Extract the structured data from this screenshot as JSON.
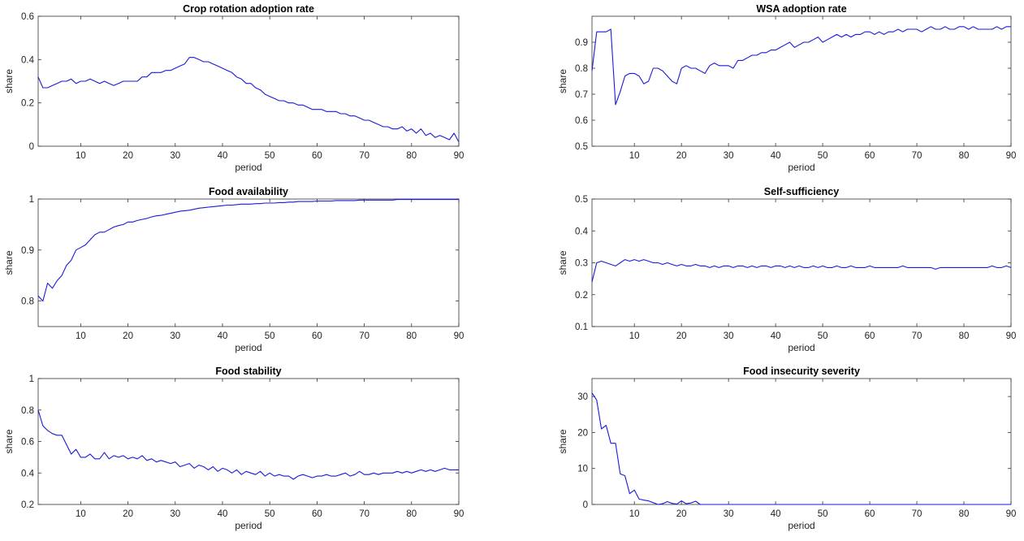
{
  "series_color": "#1a1adb",
  "chart_data": [
    {
      "type": "line",
      "title": "Crop rotation adoption rate",
      "xlabel": "period",
      "ylabel": "share",
      "xlim": [
        1,
        90
      ],
      "ylim": [
        0,
        0.6
      ],
      "xticks": [
        10,
        20,
        30,
        40,
        50,
        60,
        70,
        80,
        90
      ],
      "yticks": [
        0,
        0.2,
        0.4,
        0.6
      ],
      "ytick_labels": [
        "0",
        "0.2",
        "0.4",
        "0.6"
      ],
      "grid": false,
      "x": [
        1,
        2,
        3,
        4,
        5,
        6,
        7,
        8,
        9,
        10,
        11,
        12,
        13,
        14,
        15,
        16,
        17,
        18,
        19,
        20,
        21,
        22,
        23,
        24,
        25,
        26,
        27,
        28,
        29,
        30,
        31,
        32,
        33,
        34,
        35,
        36,
        37,
        38,
        39,
        40,
        41,
        42,
        43,
        44,
        45,
        46,
        47,
        48,
        49,
        50,
        51,
        52,
        53,
        54,
        55,
        56,
        57,
        58,
        59,
        60,
        61,
        62,
        63,
        64,
        65,
        66,
        67,
        68,
        69,
        70,
        71,
        72,
        73,
        74,
        75,
        76,
        77,
        78,
        79,
        80,
        81,
        82,
        83,
        84,
        85,
        86,
        87,
        88,
        89,
        90
      ],
      "y": [
        0.32,
        0.27,
        0.27,
        0.28,
        0.29,
        0.3,
        0.3,
        0.31,
        0.29,
        0.3,
        0.3,
        0.31,
        0.3,
        0.29,
        0.3,
        0.29,
        0.28,
        0.29,
        0.3,
        0.3,
        0.3,
        0.3,
        0.32,
        0.32,
        0.34,
        0.34,
        0.34,
        0.35,
        0.35,
        0.36,
        0.37,
        0.38,
        0.41,
        0.41,
        0.4,
        0.39,
        0.39,
        0.38,
        0.37,
        0.36,
        0.35,
        0.34,
        0.32,
        0.31,
        0.29,
        0.29,
        0.27,
        0.26,
        0.24,
        0.23,
        0.22,
        0.21,
        0.21,
        0.2,
        0.2,
        0.19,
        0.19,
        0.18,
        0.17,
        0.17,
        0.17,
        0.16,
        0.16,
        0.16,
        0.15,
        0.15,
        0.14,
        0.14,
        0.13,
        0.12,
        0.12,
        0.11,
        0.1,
        0.09,
        0.09,
        0.08,
        0.08,
        0.09,
        0.07,
        0.08,
        0.06,
        0.08,
        0.05,
        0.06,
        0.04,
        0.05,
        0.04,
        0.03,
        0.06,
        0.02
      ]
    },
    {
      "type": "line",
      "title": "WSA adoption rate",
      "xlabel": "period",
      "ylabel": "share",
      "xlim": [
        1,
        90
      ],
      "ylim": [
        0.5,
        1.0
      ],
      "xticks": [
        10,
        20,
        30,
        40,
        50,
        60,
        70,
        80,
        90
      ],
      "yticks": [
        0.5,
        0.6,
        0.7,
        0.8,
        0.9
      ],
      "ytick_labels": [
        "0.5",
        "0.6",
        "0.7",
        "0.8",
        "0.9"
      ],
      "grid": false,
      "x": [
        1,
        2,
        3,
        4,
        5,
        6,
        7,
        8,
        9,
        10,
        11,
        12,
        13,
        14,
        15,
        16,
        17,
        18,
        19,
        20,
        21,
        22,
        23,
        24,
        25,
        26,
        27,
        28,
        29,
        30,
        31,
        32,
        33,
        34,
        35,
        36,
        37,
        38,
        39,
        40,
        41,
        42,
        43,
        44,
        45,
        46,
        47,
        48,
        49,
        50,
        51,
        52,
        53,
        54,
        55,
        56,
        57,
        58,
        59,
        60,
        61,
        62,
        63,
        64,
        65,
        66,
        67,
        68,
        69,
        70,
        71,
        72,
        73,
        74,
        75,
        76,
        77,
        78,
        79,
        80,
        81,
        82,
        83,
        84,
        85,
        86,
        87,
        88,
        89,
        90
      ],
      "y": [
        0.79,
        0.94,
        0.94,
        0.94,
        0.95,
        0.66,
        0.71,
        0.77,
        0.78,
        0.78,
        0.77,
        0.74,
        0.75,
        0.8,
        0.8,
        0.79,
        0.77,
        0.75,
        0.74,
        0.8,
        0.81,
        0.8,
        0.8,
        0.79,
        0.78,
        0.81,
        0.82,
        0.81,
        0.81,
        0.81,
        0.8,
        0.83,
        0.83,
        0.84,
        0.85,
        0.85,
        0.86,
        0.86,
        0.87,
        0.87,
        0.88,
        0.89,
        0.9,
        0.88,
        0.89,
        0.9,
        0.9,
        0.91,
        0.92,
        0.9,
        0.91,
        0.92,
        0.93,
        0.92,
        0.93,
        0.92,
        0.93,
        0.93,
        0.94,
        0.94,
        0.93,
        0.94,
        0.93,
        0.94,
        0.94,
        0.95,
        0.94,
        0.95,
        0.95,
        0.95,
        0.94,
        0.95,
        0.96,
        0.95,
        0.95,
        0.96,
        0.95,
        0.95,
        0.96,
        0.96,
        0.95,
        0.96,
        0.95,
        0.95,
        0.95,
        0.95,
        0.96,
        0.95,
        0.96,
        0.96
      ]
    },
    {
      "type": "line",
      "title": "Food availability",
      "xlabel": "period",
      "ylabel": "share",
      "xlim": [
        1,
        90
      ],
      "ylim": [
        0.75,
        1.0
      ],
      "xticks": [
        10,
        20,
        30,
        40,
        50,
        60,
        70,
        80,
        90
      ],
      "yticks": [
        0.8,
        0.9,
        1.0
      ],
      "ytick_labels": [
        "0.8",
        "0.9",
        "1"
      ],
      "grid": false,
      "x": [
        1,
        2,
        3,
        4,
        5,
        6,
        7,
        8,
        9,
        10,
        11,
        12,
        13,
        14,
        15,
        16,
        17,
        18,
        19,
        20,
        21,
        22,
        23,
        24,
        25,
        26,
        27,
        28,
        29,
        30,
        31,
        32,
        33,
        34,
        35,
        36,
        37,
        38,
        39,
        40,
        41,
        42,
        43,
        44,
        45,
        46,
        47,
        48,
        49,
        50,
        51,
        52,
        53,
        54,
        55,
        56,
        57,
        58,
        59,
        60,
        61,
        62,
        63,
        64,
        65,
        66,
        67,
        68,
        69,
        70,
        71,
        72,
        73,
        74,
        75,
        76,
        77,
        78,
        79,
        80,
        81,
        82,
        83,
        84,
        85,
        86,
        87,
        88,
        89,
        90
      ],
      "y": [
        0.81,
        0.8,
        0.835,
        0.825,
        0.84,
        0.85,
        0.87,
        0.88,
        0.9,
        0.905,
        0.91,
        0.92,
        0.93,
        0.935,
        0.935,
        0.94,
        0.945,
        0.948,
        0.95,
        0.955,
        0.955,
        0.958,
        0.96,
        0.962,
        0.965,
        0.967,
        0.968,
        0.97,
        0.972,
        0.974,
        0.976,
        0.977,
        0.978,
        0.98,
        0.982,
        0.983,
        0.984,
        0.985,
        0.986,
        0.987,
        0.988,
        0.988,
        0.989,
        0.99,
        0.99,
        0.99,
        0.991,
        0.991,
        0.992,
        0.992,
        0.992,
        0.993,
        0.993,
        0.994,
        0.994,
        0.995,
        0.995,
        0.995,
        0.995,
        0.996,
        0.996,
        0.996,
        0.996,
        0.997,
        0.997,
        0.997,
        0.997,
        0.997,
        0.998,
        0.998,
        0.998,
        0.998,
        0.998,
        0.998,
        0.998,
        0.998,
        0.999,
        0.999,
        0.999,
        0.999,
        0.999,
        0.999,
        0.999,
        0.999,
        0.999,
        0.999,
        0.999,
        0.999,
        0.999,
        0.999
      ]
    },
    {
      "type": "line",
      "title": "Self-sufficiency",
      "xlabel": "period",
      "ylabel": "share",
      "xlim": [
        1,
        90
      ],
      "ylim": [
        0.1,
        0.5
      ],
      "xticks": [
        10,
        20,
        30,
        40,
        50,
        60,
        70,
        80,
        90
      ],
      "yticks": [
        0.1,
        0.2,
        0.3,
        0.4,
        0.5
      ],
      "ytick_labels": [
        "0.1",
        "0.2",
        "0.3",
        "0.4",
        "0.5"
      ],
      "grid": false,
      "x": [
        1,
        2,
        3,
        4,
        5,
        6,
        7,
        8,
        9,
        10,
        11,
        12,
        13,
        14,
        15,
        16,
        17,
        18,
        19,
        20,
        21,
        22,
        23,
        24,
        25,
        26,
        27,
        28,
        29,
        30,
        31,
        32,
        33,
        34,
        35,
        36,
        37,
        38,
        39,
        40,
        41,
        42,
        43,
        44,
        45,
        46,
        47,
        48,
        49,
        50,
        51,
        52,
        53,
        54,
        55,
        56,
        57,
        58,
        59,
        60,
        61,
        62,
        63,
        64,
        65,
        66,
        67,
        68,
        69,
        70,
        71,
        72,
        73,
        74,
        75,
        76,
        77,
        78,
        79,
        80,
        81,
        82,
        83,
        84,
        85,
        86,
        87,
        88,
        89,
        90
      ],
      "y": [
        0.24,
        0.3,
        0.305,
        0.3,
        0.295,
        0.29,
        0.3,
        0.31,
        0.305,
        0.31,
        0.305,
        0.31,
        0.305,
        0.3,
        0.3,
        0.295,
        0.3,
        0.295,
        0.29,
        0.295,
        0.29,
        0.29,
        0.295,
        0.29,
        0.29,
        0.285,
        0.29,
        0.285,
        0.29,
        0.29,
        0.285,
        0.29,
        0.29,
        0.285,
        0.29,
        0.285,
        0.29,
        0.29,
        0.285,
        0.29,
        0.29,
        0.285,
        0.29,
        0.285,
        0.29,
        0.285,
        0.285,
        0.29,
        0.285,
        0.29,
        0.285,
        0.285,
        0.29,
        0.285,
        0.285,
        0.29,
        0.285,
        0.285,
        0.285,
        0.29,
        0.285,
        0.285,
        0.285,
        0.285,
        0.285,
        0.285,
        0.29,
        0.285,
        0.285,
        0.285,
        0.285,
        0.285,
        0.285,
        0.28,
        0.285,
        0.285,
        0.285,
        0.285,
        0.285,
        0.285,
        0.285,
        0.285,
        0.285,
        0.285,
        0.285,
        0.29,
        0.285,
        0.285,
        0.29,
        0.285
      ]
    },
    {
      "type": "line",
      "title": "Food stability",
      "xlabel": "period",
      "ylabel": "share",
      "xlim": [
        1,
        90
      ],
      "ylim": [
        0.2,
        1.0
      ],
      "xticks": [
        10,
        20,
        30,
        40,
        50,
        60,
        70,
        80,
        90
      ],
      "yticks": [
        0.2,
        0.4,
        0.6,
        0.8,
        1.0
      ],
      "ytick_labels": [
        "0.2",
        "0.4",
        "0.6",
        "0.8",
        "1"
      ],
      "grid": false,
      "x": [
        1,
        2,
        3,
        4,
        5,
        6,
        7,
        8,
        9,
        10,
        11,
        12,
        13,
        14,
        15,
        16,
        17,
        18,
        19,
        20,
        21,
        22,
        23,
        24,
        25,
        26,
        27,
        28,
        29,
        30,
        31,
        32,
        33,
        34,
        35,
        36,
        37,
        38,
        39,
        40,
        41,
        42,
        43,
        44,
        45,
        46,
        47,
        48,
        49,
        50,
        51,
        52,
        53,
        54,
        55,
        56,
        57,
        58,
        59,
        60,
        61,
        62,
        63,
        64,
        65,
        66,
        67,
        68,
        69,
        70,
        71,
        72,
        73,
        74,
        75,
        76,
        77,
        78,
        79,
        80,
        81,
        82,
        83,
        84,
        85,
        86,
        87,
        88,
        89,
        90
      ],
      "y": [
        0.8,
        0.7,
        0.67,
        0.65,
        0.64,
        0.64,
        0.58,
        0.52,
        0.55,
        0.5,
        0.5,
        0.52,
        0.49,
        0.49,
        0.53,
        0.49,
        0.51,
        0.5,
        0.51,
        0.49,
        0.5,
        0.49,
        0.51,
        0.48,
        0.49,
        0.47,
        0.48,
        0.47,
        0.46,
        0.47,
        0.44,
        0.45,
        0.46,
        0.43,
        0.45,
        0.44,
        0.42,
        0.44,
        0.41,
        0.43,
        0.42,
        0.4,
        0.42,
        0.39,
        0.41,
        0.4,
        0.39,
        0.41,
        0.38,
        0.4,
        0.38,
        0.39,
        0.38,
        0.38,
        0.36,
        0.38,
        0.39,
        0.38,
        0.37,
        0.38,
        0.38,
        0.39,
        0.38,
        0.38,
        0.39,
        0.4,
        0.38,
        0.39,
        0.41,
        0.39,
        0.39,
        0.4,
        0.39,
        0.4,
        0.4,
        0.4,
        0.41,
        0.4,
        0.41,
        0.4,
        0.41,
        0.42,
        0.41,
        0.42,
        0.41,
        0.42,
        0.43,
        0.42,
        0.42,
        0.42
      ]
    },
    {
      "type": "line",
      "title": "Food insecurity severity",
      "xlabel": "period",
      "ylabel": "share",
      "xlim": [
        1,
        90
      ],
      "ylim": [
        0,
        35
      ],
      "xticks": [
        10,
        20,
        30,
        40,
        50,
        60,
        70,
        80,
        90
      ],
      "yticks": [
        0,
        10,
        20,
        30
      ],
      "ytick_labels": [
        "0",
        "10",
        "20",
        "30"
      ],
      "grid": false,
      "x": [
        1,
        2,
        3,
        4,
        5,
        6,
        7,
        8,
        9,
        10,
        11,
        12,
        13,
        14,
        15,
        16,
        17,
        18,
        19,
        20,
        21,
        22,
        23,
        24,
        25,
        26,
        27,
        28,
        29,
        30,
        31,
        32,
        33,
        34,
        35,
        36,
        37,
        38,
        39,
        40,
        41,
        42,
        43,
        44,
        45,
        46,
        47,
        48,
        49,
        50,
        51,
        52,
        53,
        54,
        55,
        56,
        57,
        58,
        59,
        60,
        61,
        62,
        63,
        64,
        65,
        66,
        67,
        68,
        69,
        70,
        71,
        72,
        73,
        74,
        75,
        76,
        77,
        78,
        79,
        80,
        81,
        82,
        83,
        84,
        85,
        86,
        87,
        88,
        89,
        90
      ],
      "y": [
        31,
        29,
        21,
        22,
        17,
        17,
        8.5,
        8,
        3,
        4,
        1.5,
        1.2,
        1,
        0.5,
        0,
        0.2,
        0.8,
        0.3,
        0.1,
        1,
        0.2,
        0.4,
        0.9,
        0,
        0,
        0,
        0,
        0,
        0,
        0,
        0,
        0,
        0,
        0,
        0,
        0,
        0,
        0,
        0,
        0,
        0,
        0,
        0,
        0,
        0,
        0,
        0,
        0,
        0,
        0,
        0,
        0,
        0,
        0,
        0,
        0,
        0,
        0,
        0,
        0,
        0,
        0,
        0,
        0,
        0,
        0,
        0,
        0,
        0,
        0,
        0,
        0,
        0,
        0,
        0,
        0,
        0,
        0,
        0,
        0,
        0,
        0,
        0,
        0,
        0,
        0,
        0,
        0,
        0,
        0
      ]
    }
  ]
}
